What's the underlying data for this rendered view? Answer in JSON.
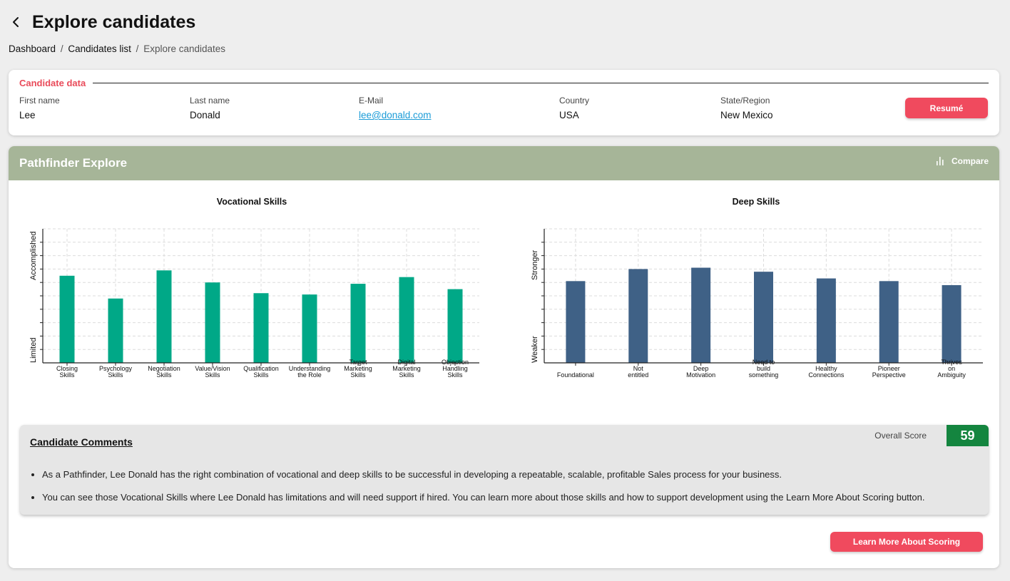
{
  "header": {
    "title": "Explore candidates"
  },
  "breadcrumb": {
    "items": [
      "Dashboard",
      "Candidates list",
      "Explore candidates"
    ],
    "separator": "/"
  },
  "candidate": {
    "section_title": "Candidate data",
    "first_name": {
      "label": "First name",
      "value": "Lee"
    },
    "last_name": {
      "label": "Last name",
      "value": "Donald"
    },
    "email": {
      "label": "E-Mail",
      "value": "lee@donald.com"
    },
    "country": {
      "label": "Country",
      "value": "USA"
    },
    "state": {
      "label": "State/Region",
      "value": "New Mexico"
    },
    "resume_label": "Resumé"
  },
  "pathfinder": {
    "title": "Pathfinder Explore",
    "compare_label": "Compare",
    "compare_icon": "bar-chart-icon"
  },
  "chart_data": [
    {
      "type": "bar",
      "title": "Vocational Skills",
      "ylabel_top": "Accomplished",
      "ylabel_bottom": "Limited",
      "ylim": [
        0,
        100
      ],
      "grid": true,
      "color": "#00a887",
      "categories": [
        [
          "Closing",
          "Skills"
        ],
        [
          "Psychology",
          "Skills"
        ],
        [
          "Negotiation",
          "Skills"
        ],
        [
          "Value/Vision",
          "Skills"
        ],
        [
          "Qualification",
          "Skills"
        ],
        [
          "Understanding",
          "the Role"
        ],
        [
          "Target",
          "Marketing",
          "Skills"
        ],
        [
          "Digital",
          "Marketing",
          "Skills"
        ],
        [
          "Objection",
          "Handling",
          "Skills"
        ]
      ],
      "values": [
        65,
        48,
        69,
        60,
        52,
        51,
        59,
        64,
        55
      ]
    },
    {
      "type": "bar",
      "title": "Deep Skills",
      "ylabel_top": "Stronger",
      "ylabel_bottom": "Weaker",
      "ylim": [
        0,
        100
      ],
      "grid": true,
      "color": "#3f6186",
      "categories": [
        [
          "Foundational"
        ],
        [
          "Not",
          "entitled"
        ],
        [
          "Deep",
          "Motivation"
        ],
        [
          "Need to",
          "build",
          "something"
        ],
        [
          "Healthy",
          "Connections"
        ],
        [
          "Pioneer",
          "Perspective"
        ],
        [
          "Thrives",
          "on",
          "Ambiguity"
        ]
      ],
      "values": [
        61,
        70,
        71,
        68,
        63,
        61,
        58
      ]
    }
  ],
  "comments": {
    "title": "Candidate Comments",
    "overall_score_label": "Overall Score",
    "overall_score": "59",
    "score_color": "#14853f",
    "items": [
      "As a Pathfinder, Lee Donald has the right combination of vocational and deep skills to be successful in developing a repeatable, scalable, profitable Sales process for your business.",
      "You can see those Vocational Skills where Lee Donald has limitations and will need support if hired. You can learn more about those skills and how to support development using the Learn More About Scoring button."
    ]
  },
  "learn_more_label": "Learn More About Scoring"
}
